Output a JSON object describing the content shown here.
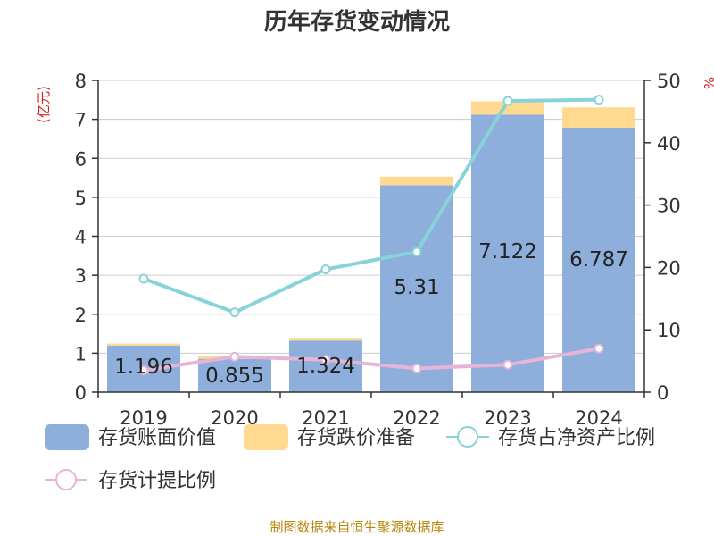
{
  "title": "历年存货变动情况",
  "left_axis_unit": "(亿元)",
  "right_axis_unit": "%",
  "source": "制图数据来自恒生聚源数据库",
  "colors": {
    "book_value": "#8eaedb",
    "impairment": "#ffd990",
    "ratio_line": "#86d3d8",
    "provision_line": "#e6b4d6",
    "axis": "#333333",
    "grid": "#cccccc",
    "unit": "#d21e1e",
    "source": "#b8860b"
  },
  "chart_data": {
    "type": "bar",
    "categories": [
      "2019",
      "2020",
      "2021",
      "2022",
      "2023",
      "2024"
    ],
    "ylim_left": [
      0,
      8
    ],
    "yticks_left": [
      0,
      1,
      2,
      3,
      4,
      5,
      6,
      7,
      8
    ],
    "ylim_right": [
      0,
      50
    ],
    "yticks_right": [
      0,
      10,
      20,
      30,
      40,
      50
    ],
    "grid": true,
    "legend_position": "bottom",
    "series": [
      {
        "name": "存货账面价值",
        "kind": "bar",
        "stack": "inv",
        "axis": "left",
        "values": [
          1.196,
          0.855,
          1.324,
          5.31,
          7.122,
          6.787
        ],
        "labels": [
          "1.196",
          "0.855",
          "1.324",
          "5.31",
          "7.122",
          "6.787"
        ]
      },
      {
        "name": "存货跌价准备",
        "kind": "bar",
        "stack": "inv",
        "axis": "left",
        "values": [
          0.05,
          0.07,
          0.07,
          0.22,
          0.34,
          0.52
        ]
      },
      {
        "name": "存货占净资产比例",
        "kind": "line",
        "axis": "right",
        "values": [
          18.2,
          12.8,
          19.7,
          22.5,
          46.7,
          46.9
        ]
      },
      {
        "name": "存货计提比例",
        "kind": "line",
        "axis": "right",
        "values": [
          3.5,
          5.7,
          5.2,
          3.8,
          4.4,
          7.0
        ]
      }
    ]
  }
}
